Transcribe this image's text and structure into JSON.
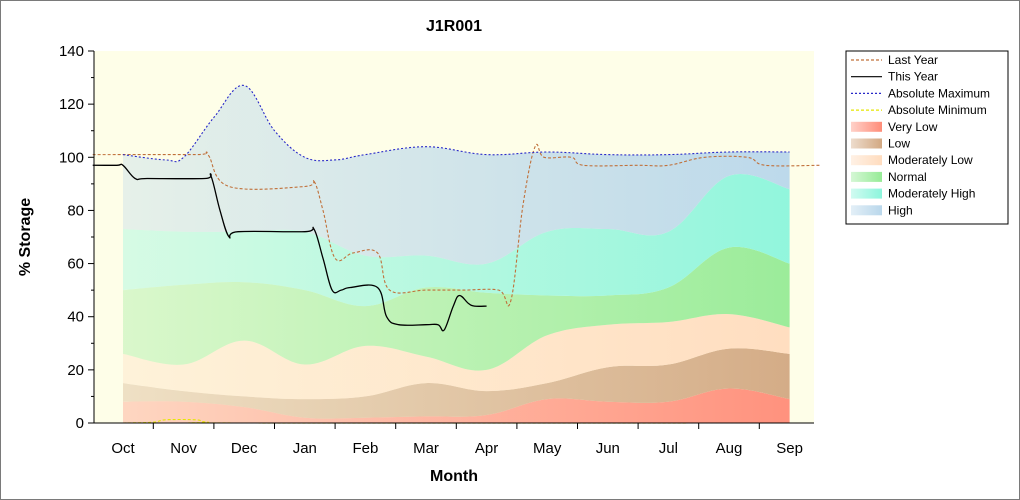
{
  "chart_data": {
    "type": "area",
    "title": "J1R001",
    "xlabel": "Month",
    "ylabel": "% Storage",
    "categories": [
      "Oct",
      "Nov",
      "Dec",
      "Jan",
      "Feb",
      "Mar",
      "Apr",
      "May",
      "Jun",
      "Jul",
      "Aug",
      "Sep"
    ],
    "ylim": [
      0,
      140
    ],
    "yticks": [
      0,
      20,
      40,
      60,
      80,
      100,
      120,
      140
    ],
    "legend_position": "right",
    "grid": false,
    "bands": [
      {
        "name": "Very Low",
        "color": "#ff8c78",
        "lower": [
          [
            0,
            0
          ],
          [
            11,
            0
          ]
        ],
        "upper": [
          [
            0,
            8
          ],
          [
            1,
            8
          ],
          [
            2,
            6
          ],
          [
            3,
            2
          ],
          [
            4,
            2
          ],
          [
            5,
            2.5
          ],
          [
            6,
            3
          ],
          [
            7,
            9
          ],
          [
            8,
            8
          ],
          [
            9,
            8
          ],
          [
            10,
            13
          ],
          [
            11,
            9
          ]
        ]
      },
      {
        "name": "Low",
        "color": "#d2a882",
        "lower": [
          [
            0,
            8
          ],
          [
            1,
            8
          ],
          [
            2,
            6
          ],
          [
            3,
            2
          ],
          [
            4,
            2
          ],
          [
            5,
            2.5
          ],
          [
            6,
            3
          ],
          [
            7,
            9
          ],
          [
            8,
            8
          ],
          [
            9,
            8
          ],
          [
            10,
            13
          ],
          [
            11,
            9
          ]
        ],
        "upper": [
          [
            0,
            15
          ],
          [
            1,
            12
          ],
          [
            2,
            10
          ],
          [
            3,
            9
          ],
          [
            4,
            10
          ],
          [
            5,
            15
          ],
          [
            6,
            12
          ],
          [
            7,
            15
          ],
          [
            8,
            21
          ],
          [
            9,
            22
          ],
          [
            10,
            28
          ],
          [
            11,
            26
          ]
        ]
      },
      {
        "name": "Moderately Low",
        "color": "#ffdcbe",
        "lower": [
          [
            0,
            15
          ],
          [
            1,
            12
          ],
          [
            2,
            10
          ],
          [
            3,
            9
          ],
          [
            4,
            10
          ],
          [
            5,
            15
          ],
          [
            6,
            12
          ],
          [
            7,
            15
          ],
          [
            8,
            21
          ],
          [
            9,
            22
          ],
          [
            10,
            28
          ],
          [
            11,
            26
          ]
        ],
        "upper": [
          [
            0,
            26
          ],
          [
            1,
            22
          ],
          [
            2,
            31
          ],
          [
            3,
            22
          ],
          [
            4,
            29
          ],
          [
            5,
            25
          ],
          [
            6,
            20
          ],
          [
            7,
            33
          ],
          [
            8,
            37
          ],
          [
            9,
            38
          ],
          [
            10,
            41
          ],
          [
            11,
            36
          ]
        ]
      },
      {
        "name": "Normal",
        "color": "#96eb96",
        "lower": [
          [
            0,
            26
          ],
          [
            1,
            22
          ],
          [
            2,
            31
          ],
          [
            3,
            22
          ],
          [
            4,
            29
          ],
          [
            5,
            25
          ],
          [
            6,
            20
          ],
          [
            7,
            33
          ],
          [
            8,
            37
          ],
          [
            9,
            38
          ],
          [
            10,
            41
          ],
          [
            11,
            36
          ]
        ],
        "upper": [
          [
            0,
            50
          ],
          [
            1,
            52
          ],
          [
            2,
            53
          ],
          [
            3,
            50
          ],
          [
            4,
            44
          ],
          [
            5,
            51
          ],
          [
            6,
            49
          ],
          [
            7,
            48
          ],
          [
            8,
            48
          ],
          [
            9,
            51
          ],
          [
            10,
            66
          ],
          [
            11,
            60
          ]
        ]
      },
      {
        "name": "Moderately High",
        "color": "#8cf5dc",
        "lower": [
          [
            0,
            50
          ],
          [
            1,
            52
          ],
          [
            2,
            53
          ],
          [
            3,
            50
          ],
          [
            4,
            44
          ],
          [
            5,
            51
          ],
          [
            6,
            49
          ],
          [
            7,
            48
          ],
          [
            8,
            48
          ],
          [
            9,
            51
          ],
          [
            10,
            66
          ],
          [
            11,
            60
          ]
        ],
        "upper": [
          [
            0,
            73
          ],
          [
            1,
            72
          ],
          [
            2,
            72
          ],
          [
            3,
            72
          ],
          [
            4,
            63
          ],
          [
            5,
            63
          ],
          [
            6,
            60
          ],
          [
            7,
            72
          ],
          [
            8,
            73
          ],
          [
            9,
            72
          ],
          [
            10,
            93
          ],
          [
            11,
            88
          ]
        ]
      },
      {
        "name": "High",
        "color": "#b9d7eb",
        "lower": [
          [
            0,
            73
          ],
          [
            1,
            72
          ],
          [
            2,
            72
          ],
          [
            3,
            72
          ],
          [
            4,
            63
          ],
          [
            5,
            63
          ],
          [
            6,
            60
          ],
          [
            7,
            72
          ],
          [
            8,
            73
          ],
          [
            9,
            72
          ],
          [
            10,
            93
          ],
          [
            11,
            88
          ]
        ],
        "upper": [
          [
            0,
            101
          ],
          [
            0.7,
            99
          ],
          [
            1,
            100
          ],
          [
            1.5,
            115
          ],
          [
            2,
            127
          ],
          [
            2.5,
            110
          ],
          [
            3,
            100
          ],
          [
            3.5,
            99
          ],
          [
            4,
            101
          ],
          [
            5,
            104
          ],
          [
            6,
            101
          ],
          [
            7,
            102
          ],
          [
            8,
            101
          ],
          [
            9,
            101
          ],
          [
            10,
            102
          ],
          [
            11,
            102
          ]
        ]
      }
    ],
    "series": [
      {
        "name": "Last Year",
        "color": "#c0703a",
        "dash": "3,2",
        "points": [
          [
            -0.5,
            101
          ],
          [
            1.2,
            101
          ],
          [
            1.4,
            101
          ],
          [
            1.75,
            89
          ],
          [
            3.0,
            89
          ],
          [
            3.15,
            91
          ],
          [
            3.3,
            80
          ],
          [
            3.5,
            62
          ],
          [
            3.8,
            64
          ],
          [
            4.2,
            64
          ],
          [
            4.4,
            50
          ],
          [
            5.0,
            50
          ],
          [
            5.6,
            50
          ],
          [
            6.2,
            50
          ],
          [
            6.4,
            46
          ],
          [
            6.6,
            82
          ],
          [
            6.8,
            104
          ],
          [
            6.95,
            100
          ],
          [
            7.4,
            100
          ],
          [
            7.6,
            97
          ],
          [
            8.5,
            97
          ],
          [
            9.0,
            97
          ],
          [
            9.6,
            100
          ],
          [
            10.3,
            100
          ],
          [
            10.6,
            97
          ],
          [
            11.5,
            97
          ]
        ]
      },
      {
        "name": "This Year",
        "color": "#000000",
        "dash": "",
        "points": [
          [
            -0.5,
            97
          ],
          [
            -0.1,
            97
          ],
          [
            0.0,
            97
          ],
          [
            0.2,
            92
          ],
          [
            0.4,
            92
          ],
          [
            1.35,
            92
          ],
          [
            1.45,
            93
          ],
          [
            1.6,
            80
          ],
          [
            1.75,
            70
          ],
          [
            1.9,
            72
          ],
          [
            3.0,
            72
          ],
          [
            3.15,
            73
          ],
          [
            3.3,
            62
          ],
          [
            3.45,
            50
          ],
          [
            3.6,
            50
          ],
          [
            3.75,
            51
          ],
          [
            4.2,
            51
          ],
          [
            4.35,
            40
          ],
          [
            4.55,
            37
          ],
          [
            5.0,
            37
          ],
          [
            5.2,
            37
          ],
          [
            5.3,
            35
          ],
          [
            5.45,
            44
          ],
          [
            5.55,
            48
          ],
          [
            5.7,
            45
          ],
          [
            5.8,
            44
          ],
          [
            6.0,
            44
          ]
        ]
      },
      {
        "name": "Absolute Maximum",
        "color": "#2828c8",
        "dash": "2,2",
        "points": [
          [
            0,
            101
          ],
          [
            0.7,
            99
          ],
          [
            1,
            100
          ],
          [
            1.5,
            115
          ],
          [
            2,
            127
          ],
          [
            2.5,
            110
          ],
          [
            3,
            100
          ],
          [
            3.5,
            99
          ],
          [
            4,
            101
          ],
          [
            5,
            104
          ],
          [
            6,
            101
          ],
          [
            7,
            102
          ],
          [
            8,
            101
          ],
          [
            9,
            101
          ],
          [
            10,
            102
          ],
          [
            11,
            102
          ]
        ]
      },
      {
        "name": "Absolute Minimum",
        "color": "#e6e600",
        "dash": "3,2",
        "points": [
          [
            0,
            0
          ],
          [
            0.5,
            0.3
          ],
          [
            0.7,
            1.2
          ],
          [
            1.2,
            1.2
          ],
          [
            1.4,
            0.3
          ],
          [
            2,
            0
          ],
          [
            11,
            0
          ]
        ]
      }
    ],
    "legend": [
      {
        "name": "Last Year",
        "kind": "line",
        "color": "#c0703a",
        "dash": "3,2"
      },
      {
        "name": "This Year",
        "kind": "line",
        "color": "#000000",
        "dash": ""
      },
      {
        "name": "Absolute Maximum",
        "kind": "line",
        "color": "#2828c8",
        "dash": "2,2"
      },
      {
        "name": "Absolute Minimum",
        "kind": "line",
        "color": "#e6e600",
        "dash": "3,2"
      },
      {
        "name": "Very Low",
        "kind": "band",
        "color": "#ff8c78"
      },
      {
        "name": "Low",
        "kind": "band",
        "color": "#d2a882"
      },
      {
        "name": "Moderately Low",
        "kind": "band",
        "color": "#ffdcbe"
      },
      {
        "name": "Normal",
        "kind": "band",
        "color": "#96eb96"
      },
      {
        "name": "Moderately High",
        "kind": "band",
        "color": "#8cf5dc"
      },
      {
        "name": "High",
        "kind": "band",
        "color": "#b9d7eb"
      }
    ],
    "plot_background": "#fefee8"
  }
}
